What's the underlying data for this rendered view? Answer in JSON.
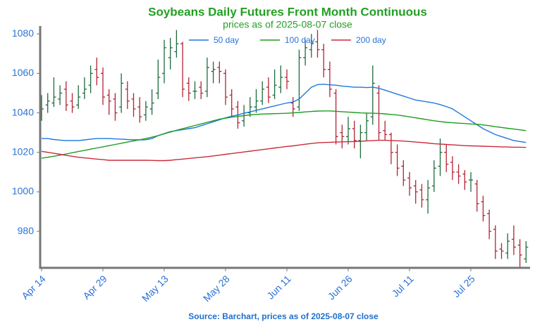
{
  "chart_data": {
    "type": "ohlc",
    "title": "Soybeans Daily Futures Front Month Continuous",
    "subtitle": "prices as of 2025-08-07 close",
    "source": "Source: Barchart, prices as of 2025-08-07 close",
    "categories": [
      "Apr 14",
      null,
      null,
      null,
      null,
      null,
      null,
      null,
      null,
      null,
      "Apr 29",
      null,
      null,
      null,
      null,
      null,
      null,
      null,
      null,
      null,
      "May 13",
      null,
      null,
      null,
      null,
      null,
      null,
      null,
      null,
      null,
      "May 28",
      null,
      null,
      null,
      null,
      null,
      null,
      null,
      null,
      null,
      "Jun 11",
      null,
      null,
      null,
      null,
      null,
      null,
      null,
      null,
      null,
      "Jun 26",
      null,
      null,
      null,
      null,
      null,
      null,
      null,
      null,
      null,
      "Jul 11",
      null,
      null,
      null,
      null,
      null,
      null,
      null,
      null,
      null,
      "Jul 25",
      null,
      null,
      null,
      null,
      null,
      null,
      null,
      null,
      null
    ],
    "open": [
      1040,
      1044,
      1045,
      1047,
      1052,
      1046,
      1044,
      1050,
      1054,
      1062,
      1060,
      1049,
      1047,
      1043,
      1052,
      1047,
      1043,
      1039,
      1042,
      1050,
      1060,
      1068,
      1071,
      1075,
      1055,
      1051,
      1053,
      1051,
      1061,
      1063,
      1060,
      1049,
      1043,
      1036,
      1040,
      1043,
      1046,
      1053,
      1049,
      1053,
      1058,
      1045,
      1043,
      1068,
      1072,
      1076,
      1072,
      1062,
      1050,
      1030,
      1028,
      1032,
      1026,
      1030,
      1038,
      1050,
      1031,
      1029,
      1020,
      1013,
      1007,
      1003,
      1001,
      996,
      1003,
      1013,
      1020,
      1015,
      1010,
      1009,
      1006,
      1004,
      995,
      989,
      981,
      971,
      969,
      976,
      973,
      966
    ],
    "high": [
      1049,
      1050,
      1058,
      1054,
      1056,
      1050,
      1054,
      1058,
      1064,
      1068,
      1063,
      1052,
      1050,
      1060,
      1056,
      1050,
      1048,
      1046,
      1052,
      1067,
      1077,
      1078,
      1082,
      1076,
      1058,
      1056,
      1056,
      1068,
      1066,
      1066,
      1062,
      1052,
      1046,
      1044,
      1048,
      1052,
      1056,
      1058,
      1062,
      1064,
      1062,
      1048,
      1072,
      1077,
      1080,
      1082,
      1075,
      1066,
      1052,
      1034,
      1038,
      1036,
      1034,
      1040,
      1064,
      1054,
      1036,
      1030,
      1024,
      1016,
      1010,
      1006,
      1004,
      1006,
      1016,
      1027,
      1024,
      1018,
      1014,
      1011,
      1010,
      1006,
      998,
      991,
      983,
      974,
      979,
      983,
      976,
      975
    ],
    "low": [
      1036,
      1040,
      1043,
      1044,
      1041,
      1040,
      1042,
      1047,
      1050,
      1054,
      1044,
      1039,
      1036,
      1040,
      1042,
      1038,
      1035,
      1036,
      1039,
      1047,
      1055,
      1062,
      1068,
      1048,
      1046,
      1047,
      1047,
      1048,
      1055,
      1055,
      1044,
      1038,
      1032,
      1033,
      1038,
      1040,
      1044,
      1045,
      1047,
      1050,
      1052,
      1038,
      1041,
      1064,
      1068,
      1068,
      1058,
      1048,
      1024,
      1022,
      1024,
      1022,
      1017,
      1026,
      1034,
      1026,
      1026,
      1014,
      1008,
      1003,
      998,
      994,
      992,
      989,
      1000,
      1008,
      1010,
      1006,
      1004,
      1001,
      1000,
      990,
      985,
      976,
      966,
      966,
      966,
      968,
      962,
      964
    ],
    "close": [
      1042,
      1046,
      1048,
      1050,
      1044,
      1043,
      1048,
      1052,
      1060,
      1058,
      1048,
      1046,
      1040,
      1055,
      1046,
      1042,
      1038,
      1043,
      1045,
      1058,
      1073,
      1073,
      1075,
      1052,
      1050,
      1051,
      1050,
      1063,
      1062,
      1061,
      1048,
      1042,
      1035,
      1040,
      1043,
      1046,
      1052,
      1048,
      1054,
      1058,
      1056,
      1042,
      1068,
      1073,
      1075,
      1072,
      1062,
      1052,
      1028,
      1028,
      1032,
      1026,
      1030,
      1036,
      1055,
      1030,
      1029,
      1020,
      1012,
      1006,
      1002,
      1000,
      996,
      1002,
      1012,
      1020,
      1014,
      1010,
      1008,
      1005,
      1006,
      994,
      988,
      980,
      970,
      970,
      975,
      972,
      968,
      972
    ],
    "up_color": "#1d6b3d",
    "down_color": "#b22234",
    "series": [
      {
        "name": "50 day",
        "color": "#1f77e0",
        "values": [
          1027,
          1027,
          1026.5,
          1026.2,
          1026,
          1026,
          1026,
          1026.3,
          1026.7,
          1027,
          1027,
          1027,
          1026.8,
          1026.7,
          1026.5,
          1026.4,
          1026.3,
          1026.4,
          1027,
          1028.5,
          1029.5,
          1030.5,
          1031,
          1031.5,
          1032,
          1032.5,
          1033.5,
          1034.5,
          1035.5,
          1036.5,
          1037.5,
          1038.3,
          1039,
          1039.8,
          1040.5,
          1041.3,
          1042,
          1042.8,
          1043.5,
          1044.3,
          1045,
          1045.5,
          1047,
          1050,
          1053,
          1054.3,
          1054.5,
          1054.2,
          1054,
          1053.6,
          1053.3,
          1053,
          1053,
          1052.8,
          1053,
          1052.5,
          1051.5,
          1050.5,
          1049.5,
          1048.5,
          1047.5,
          1046.5,
          1046,
          1045.5,
          1045,
          1044.2,
          1043.2,
          1042,
          1040,
          1038,
          1036,
          1034,
          1032,
          1030.5,
          1029,
          1028,
          1027,
          1026,
          1025.5,
          1025
        ]
      },
      {
        "name": "100 day",
        "color": "#1e9c1e",
        "values": [
          1017,
          1017.5,
          1018,
          1018.6,
          1019.2,
          1019.8,
          1020.4,
          1021,
          1021.6,
          1022.2,
          1022.8,
          1023.4,
          1024,
          1024.6,
          1025.2,
          1025.8,
          1026.4,
          1027,
          1027.7,
          1028.5,
          1029.4,
          1030.3,
          1031.2,
          1032,
          1032.8,
          1033.6,
          1034.4,
          1035.2,
          1036,
          1036.8,
          1037.3,
          1037.8,
          1038.2,
          1038.6,
          1039,
          1039.2,
          1039.4,
          1039.5,
          1039.6,
          1039.7,
          1039.8,
          1040,
          1040.2,
          1040.5,
          1040.7,
          1040.9,
          1041,
          1041,
          1040.8,
          1040.6,
          1040.4,
          1040.2,
          1040,
          1039.9,
          1039.8,
          1039.7,
          1039.5,
          1039.2,
          1038.9,
          1038.5,
          1038,
          1037.5,
          1037,
          1036.5,
          1036,
          1035.6,
          1035.2,
          1035,
          1034.8,
          1034.6,
          1034.4,
          1034.2,
          1033.9,
          1033.5,
          1033,
          1032.6,
          1032.2,
          1031.8,
          1031.4,
          1031
        ]
      },
      {
        "name": "200 day",
        "color": "#cc2a3a",
        "values": [
          1020.5,
          1020,
          1019.5,
          1019,
          1018.5,
          1018,
          1017.5,
          1017.2,
          1016.9,
          1016.6,
          1016.3,
          1016,
          1016,
          1016,
          1016,
          1016,
          1016,
          1016,
          1015.9,
          1015.8,
          1015.8,
          1016,
          1016.3,
          1016.6,
          1016.9,
          1017.2,
          1017.5,
          1017.8,
          1018.2,
          1018.6,
          1019,
          1019.4,
          1019.8,
          1020.2,
          1020.6,
          1021,
          1021.4,
          1021.8,
          1022.2,
          1022.6,
          1023,
          1023.3,
          1023.7,
          1024.1,
          1024.5,
          1024.8,
          1025,
          1025.1,
          1025.2,
          1025.3,
          1025.4,
          1025.5,
          1025.6,
          1025.8,
          1026,
          1026.1,
          1026.1,
          1026,
          1025.9,
          1025.7,
          1025.5,
          1025.2,
          1025,
          1024.7,
          1024.4,
          1024.2,
          1024,
          1023.8,
          1023.6,
          1023.4,
          1023.3,
          1023.2,
          1023.1,
          1023,
          1022.9,
          1022.8,
          1022.7,
          1022.6,
          1022.6,
          1022.5
        ]
      }
    ],
    "ylim": [
      961.5,
      1084
    ],
    "yticks": [
      980,
      1000,
      1020,
      1040,
      1060,
      1080
    ],
    "legend": "upper center"
  }
}
